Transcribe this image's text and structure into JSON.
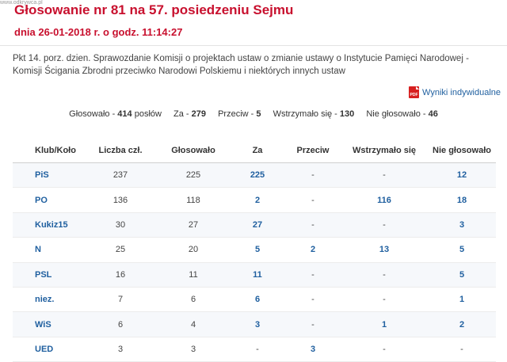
{
  "watermark": "www.odkrywca.pl",
  "header": {
    "title": "Głosowanie nr 81 na 57. posiedzeniu Sejmu",
    "subtitle": "dnia 26-01-2018 r. o godz. 11:14:27"
  },
  "description": "Pkt 14. porz. dzien. Sprawozdanie Komisji o projektach ustaw o zmianie ustawy o Instytucie Pamięci Narodowej - Komisji Ścigania Zbrodni przeciwko Narodowi Polskiemu i niektórych innych ustaw",
  "results_link": {
    "icon": "pdf-icon",
    "icon_text": "PDF",
    "label": "Wyniki indywidualne"
  },
  "summary": {
    "voted_label": "Głosowało -",
    "voted_value": "414",
    "voted_suffix": "posłów",
    "for_label": "Za -",
    "for_value": "279",
    "against_label": "Przeciw -",
    "against_value": "5",
    "abstain_label": "Wstrzymało się -",
    "abstain_value": "130",
    "absent_label": "Nie głosowało -",
    "absent_value": "46"
  },
  "table": {
    "headers": [
      "Klub/Koło",
      "Liczba czł.",
      "Głosowało",
      "Za",
      "Przeciw",
      "Wstrzymało się",
      "Nie głosowało"
    ],
    "rows": [
      {
        "club": "PiS",
        "members": "237",
        "voted": "225",
        "za": "225",
        "przeciw": "-",
        "wstrzymalo": "-",
        "nie": "12"
      },
      {
        "club": "PO",
        "members": "136",
        "voted": "118",
        "za": "2",
        "przeciw": "-",
        "wstrzymalo": "116",
        "nie": "18"
      },
      {
        "club": "Kukiz15",
        "members": "30",
        "voted": "27",
        "za": "27",
        "przeciw": "-",
        "wstrzymalo": "-",
        "nie": "3"
      },
      {
        "club": "N",
        "members": "25",
        "voted": "20",
        "za": "5",
        "przeciw": "2",
        "wstrzymalo": "13",
        "nie": "5"
      },
      {
        "club": "PSL",
        "members": "16",
        "voted": "11",
        "za": "11",
        "przeciw": "-",
        "wstrzymalo": "-",
        "nie": "5"
      },
      {
        "club": "niez.",
        "members": "7",
        "voted": "6",
        "za": "6",
        "przeciw": "-",
        "wstrzymalo": "-",
        "nie": "1"
      },
      {
        "club": "WiS",
        "members": "6",
        "voted": "4",
        "za": "3",
        "przeciw": "-",
        "wstrzymalo": "1",
        "nie": "2"
      },
      {
        "club": "UED",
        "members": "3",
        "voted": "3",
        "za": "-",
        "przeciw": "3",
        "wstrzymalo": "-",
        "nie": "-"
      }
    ]
  },
  "colors": {
    "title": "#c8102e",
    "link": "#1f5f9f",
    "pdf": "#d71f1f"
  }
}
